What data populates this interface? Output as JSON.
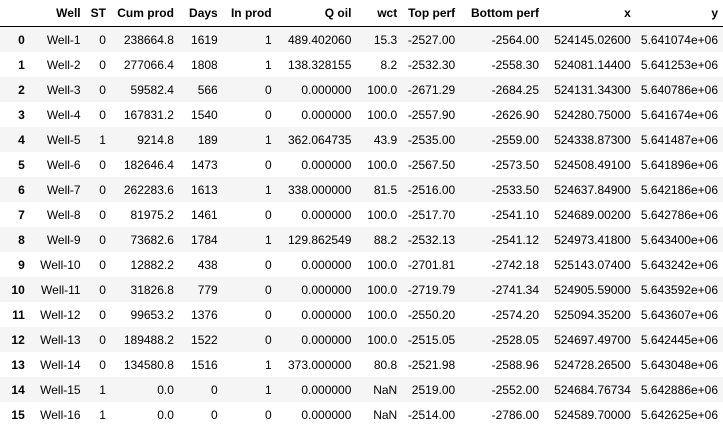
{
  "table": {
    "columns": [
      "",
      "Well",
      "ST",
      "Cum prod",
      "Days",
      "In prod",
      "Q oil",
      "wct",
      "Top perf",
      "Bottom perf",
      "x",
      "y"
    ],
    "rows": [
      {
        "index": "0",
        "cells": [
          "Well-1",
          "0",
          "238664.8",
          "1619",
          "1",
          "489.402060",
          "15.3",
          "-2527.00",
          "-2564.00",
          "524145.02600",
          "5.641074e+06"
        ]
      },
      {
        "index": "1",
        "cells": [
          "Well-2",
          "0",
          "277066.4",
          "1808",
          "1",
          "138.328155",
          "8.2",
          "-2532.30",
          "-2558.30",
          "524081.14400",
          "5.641253e+06"
        ]
      },
      {
        "index": "2",
        "cells": [
          "Well-3",
          "0",
          "59582.4",
          "566",
          "0",
          "0.000000",
          "100.0",
          "-2671.29",
          "-2684.25",
          "524131.34300",
          "5.640786e+06"
        ]
      },
      {
        "index": "3",
        "cells": [
          "Well-4",
          "0",
          "167831.2",
          "1540",
          "0",
          "0.000000",
          "100.0",
          "-2557.90",
          "-2626.90",
          "524280.75000",
          "5.641674e+06"
        ]
      },
      {
        "index": "4",
        "cells": [
          "Well-5",
          "1",
          "9214.8",
          "189",
          "1",
          "362.064735",
          "43.9",
          "-2535.00",
          "-2559.00",
          "524338.87300",
          "5.641487e+06"
        ]
      },
      {
        "index": "5",
        "cells": [
          "Well-6",
          "0",
          "182646.4",
          "1473",
          "0",
          "0.000000",
          "100.0",
          "-2567.50",
          "-2573.50",
          "524508.49100",
          "5.641896e+06"
        ]
      },
      {
        "index": "6",
        "cells": [
          "Well-7",
          "0",
          "262283.6",
          "1613",
          "1",
          "338.000000",
          "81.5",
          "-2516.00",
          "-2533.50",
          "524637.84900",
          "5.642186e+06"
        ]
      },
      {
        "index": "7",
        "cells": [
          "Well-8",
          "0",
          "81975.2",
          "1461",
          "0",
          "0.000000",
          "100.0",
          "-2517.70",
          "-2541.10",
          "524689.00200",
          "5.642786e+06"
        ]
      },
      {
        "index": "8",
        "cells": [
          "Well-9",
          "0",
          "73682.6",
          "1784",
          "1",
          "129.862549",
          "88.2",
          "-2532.13",
          "-2541.12",
          "524973.41800",
          "5.643400e+06"
        ]
      },
      {
        "index": "9",
        "cells": [
          "Well-10",
          "0",
          "12882.2",
          "438",
          "0",
          "0.000000",
          "100.0",
          "-2701.81",
          "-2742.18",
          "525143.07400",
          "5.643242e+06"
        ]
      },
      {
        "index": "10",
        "cells": [
          "Well-11",
          "0",
          "31826.8",
          "779",
          "0",
          "0.000000",
          "100.0",
          "-2719.79",
          "-2741.34",
          "524905.59000",
          "5.643592e+06"
        ]
      },
      {
        "index": "11",
        "cells": [
          "Well-12",
          "0",
          "99653.2",
          "1376",
          "0",
          "0.000000",
          "100.0",
          "-2550.20",
          "-2574.20",
          "525094.35200",
          "5.643607e+06"
        ]
      },
      {
        "index": "12",
        "cells": [
          "Well-13",
          "0",
          "189488.2",
          "1522",
          "0",
          "0.000000",
          "100.0",
          "-2515.05",
          "-2528.05",
          "524697.49700",
          "5.642445e+06"
        ]
      },
      {
        "index": "13",
        "cells": [
          "Well-14",
          "0",
          "134580.8",
          "1516",
          "1",
          "373.000000",
          "80.8",
          "-2521.98",
          "-2588.96",
          "524728.26500",
          "5.643048e+06"
        ]
      },
      {
        "index": "14",
        "cells": [
          "Well-15",
          "1",
          "0.0",
          "0",
          "1",
          "0.000000",
          "NaN",
          "2519.00",
          "-2552.00",
          "524684.76734",
          "5.642886e+06"
        ]
      },
      {
        "index": "15",
        "cells": [
          "Well-16",
          "1",
          "0.0",
          "0",
          "0",
          "0.000000",
          "NaN",
          "-2514.00",
          "-2786.00",
          "524589.70000",
          "5.642625e+06"
        ]
      }
    ]
  }
}
